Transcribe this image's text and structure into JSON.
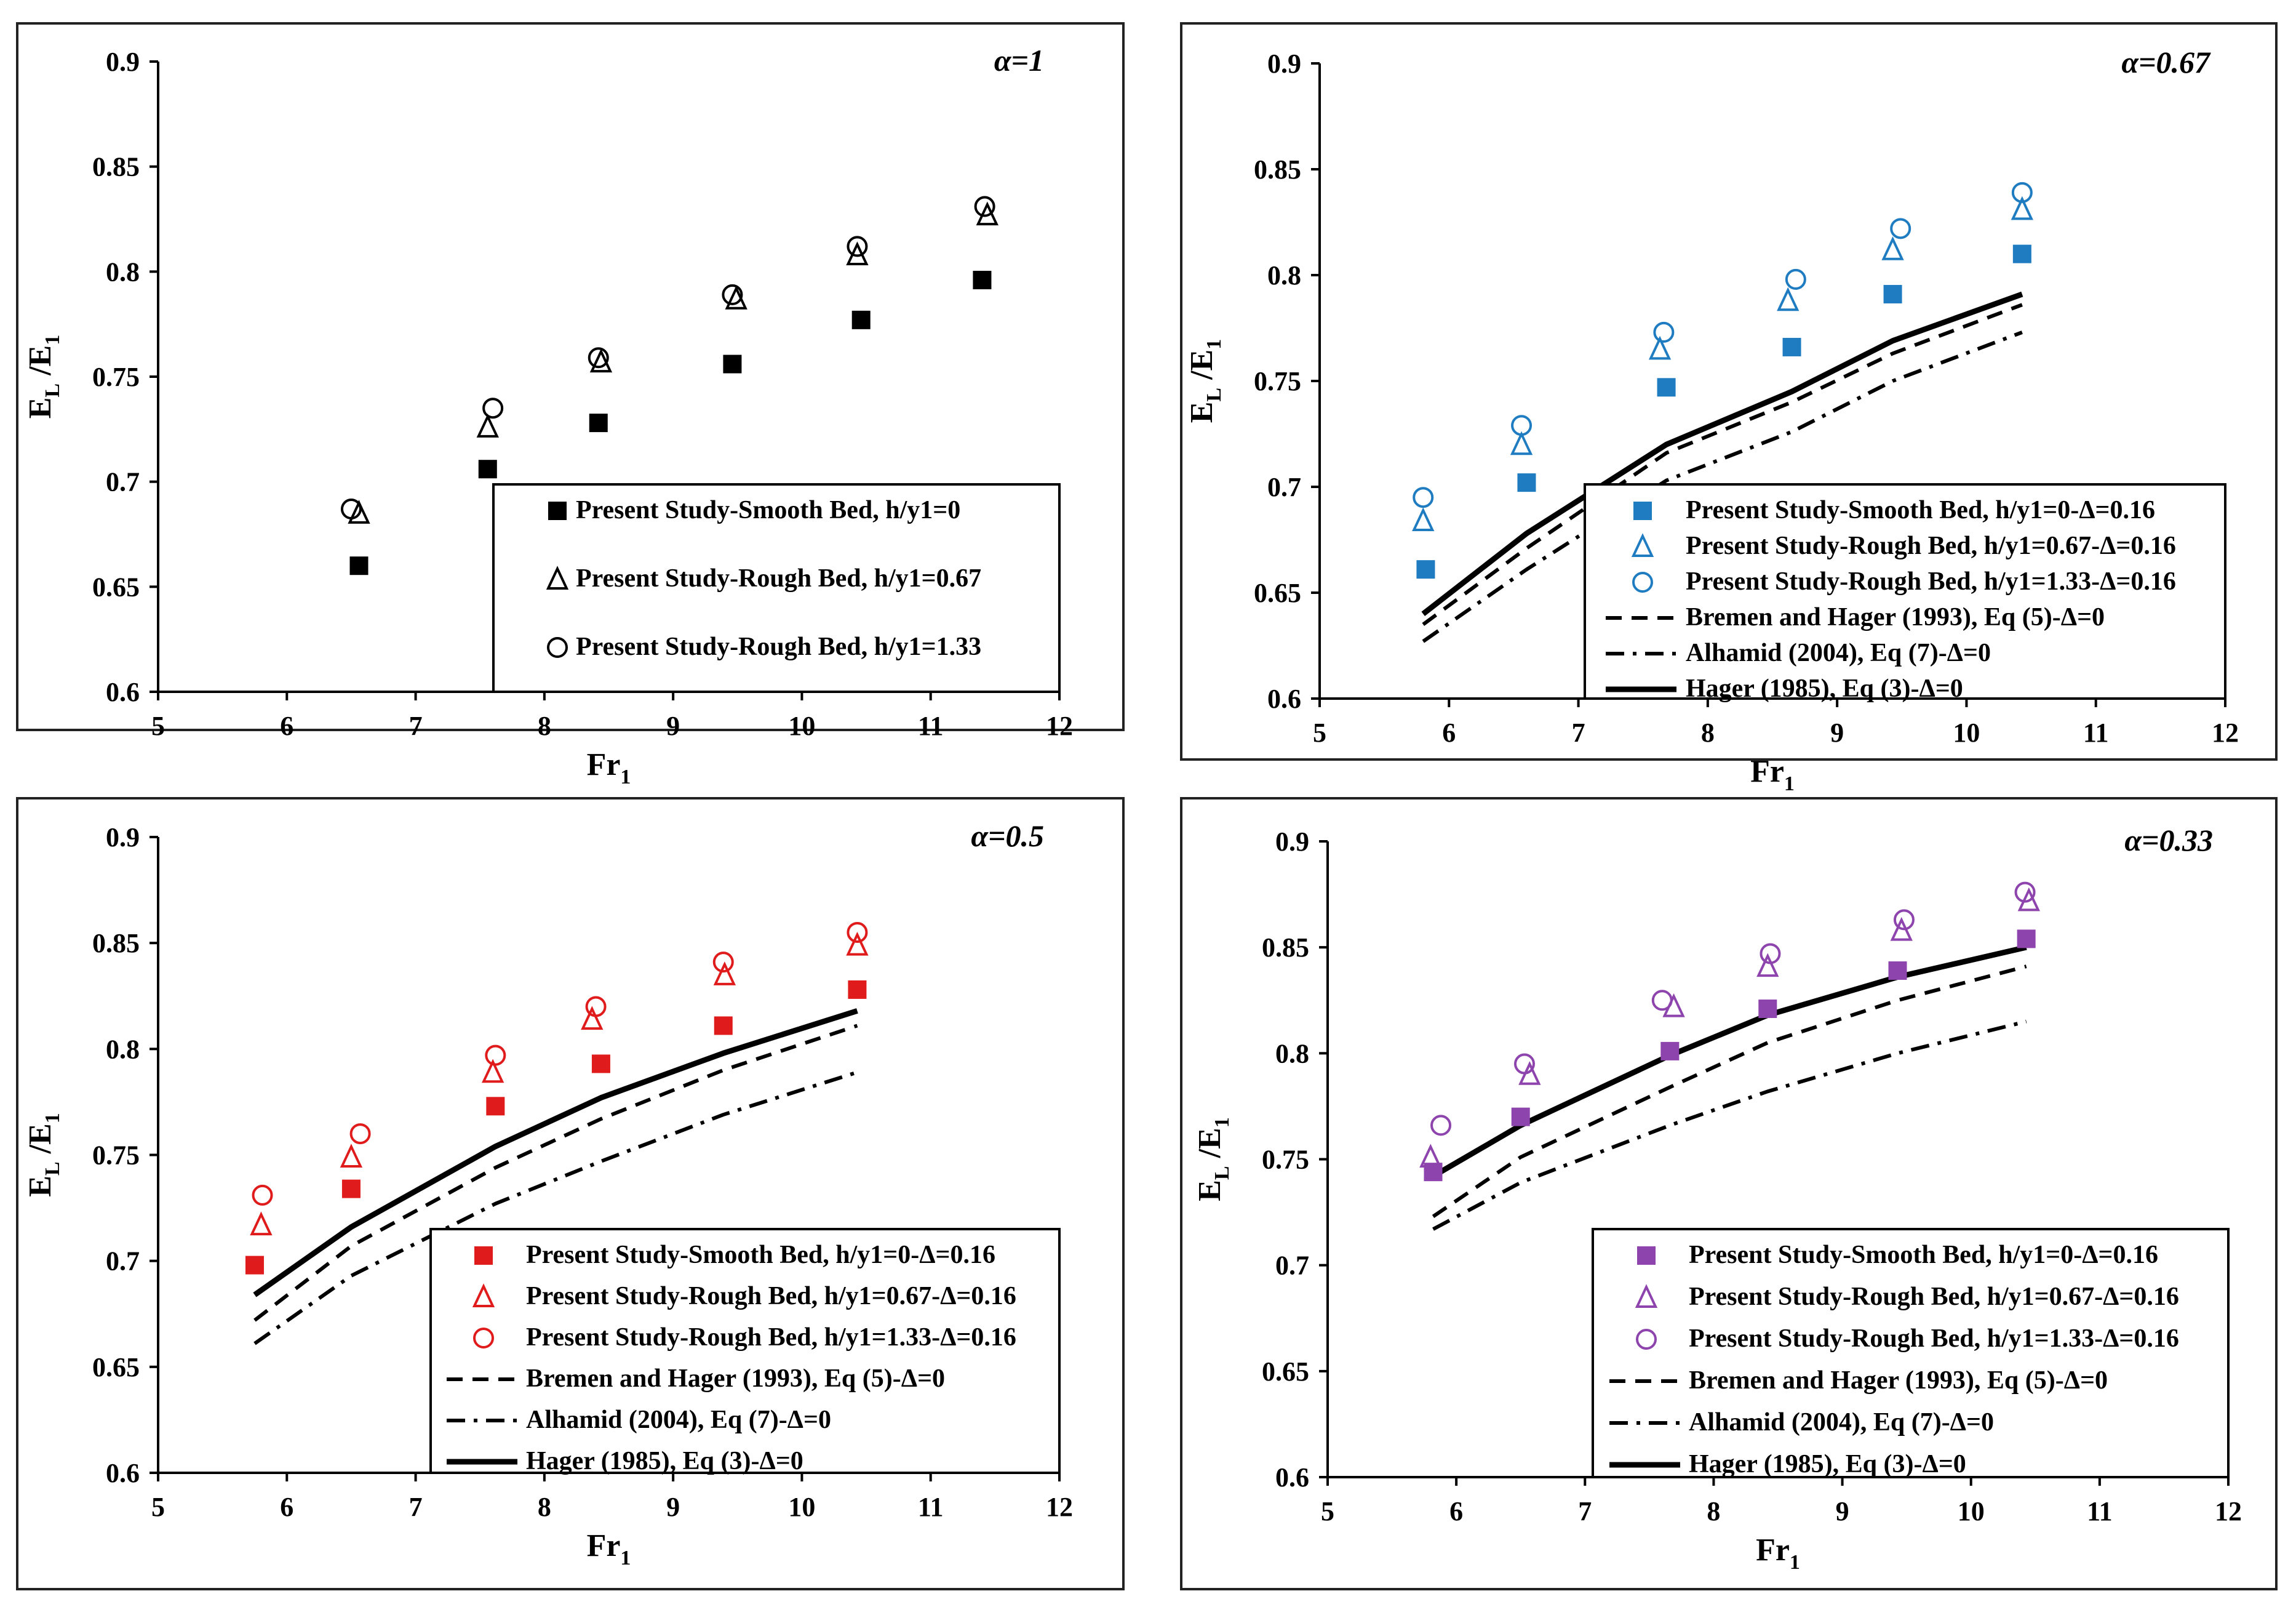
{
  "colors": {
    "black": "#000000",
    "blue": "#1f7cc1",
    "red": "#e01b1b",
    "purple": "#8e44ad"
  },
  "chart_data": [
    {
      "type": "scatter",
      "alpha_label": "α=1",
      "xlabel": "Fr",
      "xlabel_sub": "1",
      "ylabel": "E",
      "ylabel_sub1": "L",
      "ylabel_mid": " /E",
      "ylabel_sub2": "1",
      "xlim": [
        5,
        12
      ],
      "ylim": [
        0.6,
        0.9
      ],
      "xticks": [
        "5",
        "6",
        "7",
        "8",
        "9",
        "10",
        "11",
        "12"
      ],
      "yticks": [
        "0.6",
        "0.65",
        "0.7",
        "0.75",
        "0.8",
        "0.85",
        "0.9"
      ],
      "color": "#000000",
      "legend_position": "bottom-right",
      "series": [
        {
          "name": "Present Study-Smooth Bed, h/y1=0",
          "marker": "square",
          "x": [
            6.56,
            7.56,
            8.42,
            9.46,
            10.46,
            11.4
          ],
          "y": [
            0.66,
            0.706,
            0.728,
            0.756,
            0.777,
            0.796
          ]
        },
        {
          "name": "Present Study-Rough Bed, h/y1=0.67",
          "marker": "triangle",
          "x": [
            6.56,
            7.56,
            8.44,
            9.49,
            10.43,
            11.44
          ],
          "y": [
            0.685,
            0.726,
            0.757,
            0.787,
            0.808,
            0.827
          ]
        },
        {
          "name": "Present Study-Rough Bed, h/y1=1.33",
          "marker": "circle",
          "x": [
            6.5,
            7.6,
            8.42,
            9.46,
            10.43,
            11.42
          ],
          "y": [
            0.687,
            0.735,
            0.759,
            0.789,
            0.812,
            0.831
          ]
        }
      ]
    },
    {
      "type": "scatter",
      "alpha_label": "α=0.67",
      "xlabel": "Fr",
      "xlabel_sub": "1",
      "ylabel": "E",
      "ylabel_sub1": "L",
      "ylabel_mid": " /E",
      "ylabel_sub2": "1",
      "xlim": [
        5,
        12
      ],
      "ylim": [
        0.6,
        0.9
      ],
      "xticks": [
        "5",
        "6",
        "7",
        "8",
        "9",
        "10",
        "11",
        "12"
      ],
      "yticks": [
        "0.6",
        "0.65",
        "0.7",
        "0.75",
        "0.8",
        "0.85",
        "0.9"
      ],
      "color": "#1f7cc1",
      "legend_position": "bottom-right",
      "series": [
        {
          "name": "Present Study-Smooth Bed, h/y1=0-Δ=0.16",
          "marker": "square",
          "x": [
            5.82,
            6.6,
            7.68,
            8.65,
            9.43,
            10.43
          ],
          "y": [
            0.661,
            0.702,
            0.747,
            0.766,
            0.791,
            0.81
          ]
        },
        {
          "name": "Present Study-Rough Bed, h/y1=0.67-Δ=0.16",
          "marker": "triangle",
          "x": [
            5.8,
            6.56,
            7.63,
            8.62,
            9.43,
            10.43
          ],
          "y": [
            0.684,
            0.72,
            0.765,
            0.788,
            0.812,
            0.831
          ]
        },
        {
          "name": "Present Study-Rough Bed, h/y1=1.33-Δ=0.16",
          "marker": "circle",
          "x": [
            5.8,
            6.56,
            7.66,
            8.68,
            9.49,
            10.43
          ],
          "y": [
            0.695,
            0.729,
            0.773,
            0.798,
            0.822,
            0.839
          ]
        },
        {
          "name": "Bremen and Hager (1993), Eq (5)-Δ=0",
          "line": "dashed",
          "x": [
            5.8,
            6.6,
            7.68,
            8.65,
            9.43,
            10.43
          ],
          "y": [
            0.635,
            0.671,
            0.716,
            0.74,
            0.763,
            0.786
          ]
        },
        {
          "name": "Alhamid (2004), Eq (7)-Δ=0",
          "line": "dashdot",
          "x": [
            5.8,
            6.6,
            7.68,
            8.65,
            9.43,
            10.43
          ],
          "y": [
            0.627,
            0.661,
            0.703,
            0.726,
            0.75,
            0.773
          ]
        },
        {
          "name": "Hager (1985), Eq (3)-Δ=0",
          "line": "solid",
          "x": [
            5.8,
            6.6,
            7.68,
            8.65,
            9.43,
            10.43
          ],
          "y": [
            0.64,
            0.678,
            0.72,
            0.745,
            0.769,
            0.791
          ]
        }
      ]
    },
    {
      "type": "scatter",
      "alpha_label": "α=0.5",
      "xlabel": "Fr",
      "xlabel_sub": "1",
      "ylabel": "E",
      "ylabel_sub1": "L",
      "ylabel_mid": " /E",
      "ylabel_sub2": "1",
      "xlim": [
        5,
        12
      ],
      "ylim": [
        0.6,
        0.9
      ],
      "xticks": [
        "5",
        "6",
        "7",
        "8",
        "9",
        "10",
        "11",
        "12"
      ],
      "yticks": [
        "0.6",
        "0.65",
        "0.7",
        "0.75",
        "0.8",
        "0.85",
        "0.9"
      ],
      "color": "#e01b1b",
      "legend_position": "bottom-right",
      "series": [
        {
          "name": "Present Study-Smooth Bed, h/y1=0-Δ=0.16",
          "marker": "square",
          "x": [
            5.75,
            6.5,
            7.62,
            8.44,
            9.39,
            10.43
          ],
          "y": [
            0.698,
            0.734,
            0.773,
            0.793,
            0.811,
            0.828
          ]
        },
        {
          "name": "Present Study-Rough Bed, h/y1=0.67-Δ=0.16",
          "marker": "triangle",
          "x": [
            5.8,
            6.5,
            7.6,
            8.37,
            9.4,
            10.43
          ],
          "y": [
            0.717,
            0.749,
            0.789,
            0.814,
            0.835,
            0.849
          ]
        },
        {
          "name": "Present Study-Rough Bed, h/y1=1.33-Δ=0.16",
          "marker": "circle",
          "x": [
            5.81,
            6.57,
            7.62,
            8.4,
            9.39,
            10.43
          ],
          "y": [
            0.731,
            0.76,
            0.797,
            0.82,
            0.841,
            0.855
          ]
        },
        {
          "name": "Bremen and Hager (1993), Eq (5)-Δ=0",
          "line": "dashed",
          "x": [
            5.75,
            6.5,
            7.62,
            8.44,
            9.39,
            10.43
          ],
          "y": [
            0.672,
            0.707,
            0.744,
            0.767,
            0.79,
            0.811
          ]
        },
        {
          "name": "Alhamid (2004), Eq (7)-Δ=0",
          "line": "dashdot",
          "x": [
            5.75,
            6.5,
            7.62,
            8.44,
            9.39,
            10.43
          ],
          "y": [
            0.661,
            0.693,
            0.727,
            0.747,
            0.769,
            0.789
          ]
        },
        {
          "name": "Hager (1985), Eq (3)-Δ=0",
          "line": "solid",
          "x": [
            5.75,
            6.5,
            7.62,
            8.44,
            9.39,
            10.43
          ],
          "y": [
            0.684,
            0.716,
            0.754,
            0.777,
            0.798,
            0.818
          ]
        }
      ]
    },
    {
      "type": "scatter",
      "alpha_label": "α=0.33",
      "xlabel": "Fr",
      "xlabel_sub": "1",
      "ylabel": "E",
      "ylabel_sub1": "L",
      "ylabel_mid": " /E",
      "ylabel_sub2": "1",
      "xlim": [
        5,
        12
      ],
      "ylim": [
        0.6,
        0.9
      ],
      "xticks": [
        "5",
        "6",
        "7",
        "8",
        "9",
        "10",
        "11",
        "12"
      ],
      "yticks": [
        "0.6",
        "0.65",
        "0.7",
        "0.75",
        "0.8",
        "0.85",
        "0.9"
      ],
      "color": "#8e44ad",
      "legend_position": "bottom-right",
      "series": [
        {
          "name": "Present Study-Smooth Bed, h/y1=0-Δ=0.16",
          "marker": "square",
          "x": [
            5.82,
            6.5,
            7.66,
            8.42,
            9.43,
            10.43
          ],
          "y": [
            0.744,
            0.77,
            0.801,
            0.821,
            0.839,
            0.854
          ]
        },
        {
          "name": "Present Study-Rough Bed, h/y1=0.67-Δ=0.16",
          "marker": "triangle",
          "x": [
            5.8,
            6.57,
            7.69,
            8.42,
            9.46,
            10.45
          ],
          "y": [
            0.751,
            0.79,
            0.822,
            0.841,
            0.858,
            0.872
          ]
        },
        {
          "name": "Present Study-Rough Bed, h/y1=1.33-Δ=0.16",
          "marker": "circle",
          "x": [
            5.88,
            6.53,
            7.6,
            8.44,
            9.48,
            10.42
          ],
          "y": [
            0.766,
            0.795,
            0.825,
            0.847,
            0.863,
            0.876
          ]
        },
        {
          "name": "Bremen and Hager (1993), Eq (5)-Δ=0",
          "line": "dashed",
          "x": [
            5.82,
            6.5,
            7.66,
            8.42,
            9.43,
            10.43
          ],
          "y": [
            0.723,
            0.751,
            0.784,
            0.805,
            0.825,
            0.841
          ]
        },
        {
          "name": "Alhamid (2004), Eq (7)-Δ=0",
          "line": "dashdot",
          "x": [
            5.82,
            6.5,
            7.66,
            8.42,
            9.43,
            10.43
          ],
          "y": [
            0.717,
            0.739,
            0.766,
            0.782,
            0.8,
            0.815
          ]
        },
        {
          "name": "Hager (1985), Eq (3)-Δ=0",
          "line": "solid",
          "x": [
            5.82,
            6.5,
            7.66,
            8.42,
            9.43,
            10.43
          ],
          "y": [
            0.742,
            0.766,
            0.799,
            0.818,
            0.836,
            0.85
          ]
        }
      ]
    }
  ]
}
